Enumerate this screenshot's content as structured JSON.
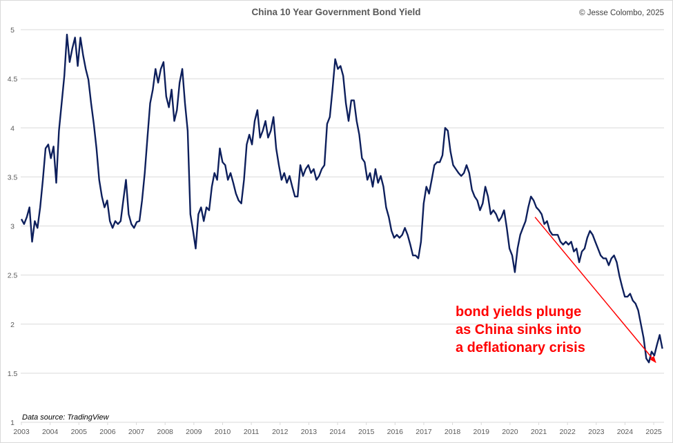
{
  "chart_data": {
    "type": "line",
    "title": "China 10 Year Government Bond Yield",
    "credit": "© Jesse Colombo, 2025",
    "source": "Data source: TradingView",
    "xlabel": "",
    "ylabel": "",
    "xlim": [
      2003,
      2025.4
    ],
    "ylim": [
      1,
      5
    ],
    "grid": "horizontal",
    "y_ticks": [
      "1",
      "1.5",
      "2",
      "2.5",
      "3",
      "3.5",
      "4",
      "4.5",
      "5"
    ],
    "x_ticks": [
      "2003",
      "2004",
      "2005",
      "2006",
      "2007",
      "2008",
      "2009",
      "2010",
      "2011",
      "2012",
      "2013",
      "2014",
      "2015",
      "2016",
      "2017",
      "2018",
      "2019",
      "2020",
      "2021",
      "2022",
      "2023",
      "2024",
      "2025"
    ],
    "series": [
      {
        "name": "China 10Y yield",
        "color": "#0d1f5c",
        "x_start": 2003.0,
        "x_end": 2025.3,
        "values": [
          3.07,
          3.02,
          3.09,
          3.19,
          2.84,
          3.05,
          2.98,
          3.19,
          3.47,
          3.79,
          3.83,
          3.69,
          3.81,
          3.44,
          3.97,
          4.25,
          4.53,
          4.95,
          4.67,
          4.81,
          4.92,
          4.63,
          4.92,
          4.74,
          4.6,
          4.49,
          4.25,
          4.04,
          3.79,
          3.47,
          3.3,
          3.19,
          3.26,
          3.05,
          2.98,
          3.05,
          3.02,
          3.05,
          3.26,
          3.47,
          3.12,
          3.02,
          2.98,
          3.04,
          3.05,
          3.26,
          3.54,
          3.9,
          4.25,
          4.39,
          4.6,
          4.46,
          4.6,
          4.67,
          4.32,
          4.21,
          4.39,
          4.07,
          4.18,
          4.46,
          4.6,
          4.25,
          3.97,
          3.12,
          2.95,
          2.77,
          3.12,
          3.19,
          3.05,
          3.19,
          3.16,
          3.4,
          3.54,
          3.47,
          3.79,
          3.65,
          3.62,
          3.47,
          3.54,
          3.44,
          3.33,
          3.26,
          3.23,
          3.47,
          3.83,
          3.93,
          3.83,
          4.07,
          4.18,
          3.9,
          3.97,
          4.07,
          3.9,
          3.97,
          4.11,
          3.79,
          3.62,
          3.47,
          3.54,
          3.44,
          3.51,
          3.4,
          3.3,
          3.3,
          3.62,
          3.51,
          3.58,
          3.62,
          3.54,
          3.58,
          3.47,
          3.51,
          3.58,
          3.62,
          4.04,
          4.11,
          4.39,
          4.7,
          4.6,
          4.63,
          4.53,
          4.25,
          4.07,
          4.28,
          4.28,
          4.07,
          3.93,
          3.69,
          3.65,
          3.47,
          3.54,
          3.4,
          3.58,
          3.44,
          3.51,
          3.4,
          3.19,
          3.09,
          2.95,
          2.88,
          2.91,
          2.88,
          2.91,
          2.98,
          2.91,
          2.81,
          2.7,
          2.7,
          2.67,
          2.84,
          3.23,
          3.4,
          3.33,
          3.47,
          3.62,
          3.65,
          3.65,
          3.72,
          4.0,
          3.97,
          3.76,
          3.62,
          3.58,
          3.54,
          3.51,
          3.54,
          3.62,
          3.54,
          3.37,
          3.3,
          3.26,
          3.16,
          3.23,
          3.4,
          3.3,
          3.12,
          3.16,
          3.12,
          3.05,
          3.09,
          3.16,
          2.98,
          2.77,
          2.7,
          2.53,
          2.77,
          2.91,
          2.98,
          3.05,
          3.19,
          3.3,
          3.26,
          3.19,
          3.16,
          3.12,
          3.02,
          3.05,
          2.95,
          2.91,
          2.91,
          2.91,
          2.84,
          2.81,
          2.84,
          2.81,
          2.84,
          2.74,
          2.77,
          2.63,
          2.74,
          2.77,
          2.88,
          2.95,
          2.91,
          2.84,
          2.77,
          2.7,
          2.67,
          2.67,
          2.6,
          2.67,
          2.7,
          2.63,
          2.49,
          2.38,
          2.28,
          2.28,
          2.31,
          2.24,
          2.21,
          2.14,
          2.0,
          1.86,
          1.65,
          1.61,
          1.72,
          1.68,
          1.79,
          1.89,
          1.75
        ]
      }
    ],
    "annotations": [
      {
        "lines": [
          "bond yields plunge",
          "as China sinks into",
          "a deflationary crisis"
        ],
        "color": "#ff0000",
        "arrow_from": [
          2020.87,
          3.09
        ],
        "arrow_to": [
          2025.07,
          1.61
        ]
      }
    ]
  }
}
